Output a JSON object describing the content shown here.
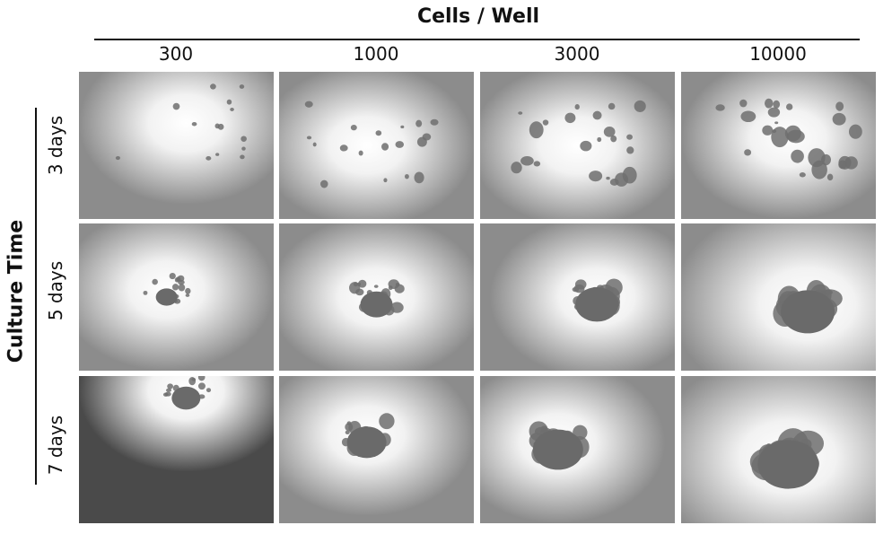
{
  "column_header": "Cells / Well",
  "columns": [
    "300",
    "1000",
    "3000",
    "10000"
  ],
  "row_header": "Culture Time",
  "rows": [
    "3 days",
    "5 days",
    "7 days"
  ]
}
